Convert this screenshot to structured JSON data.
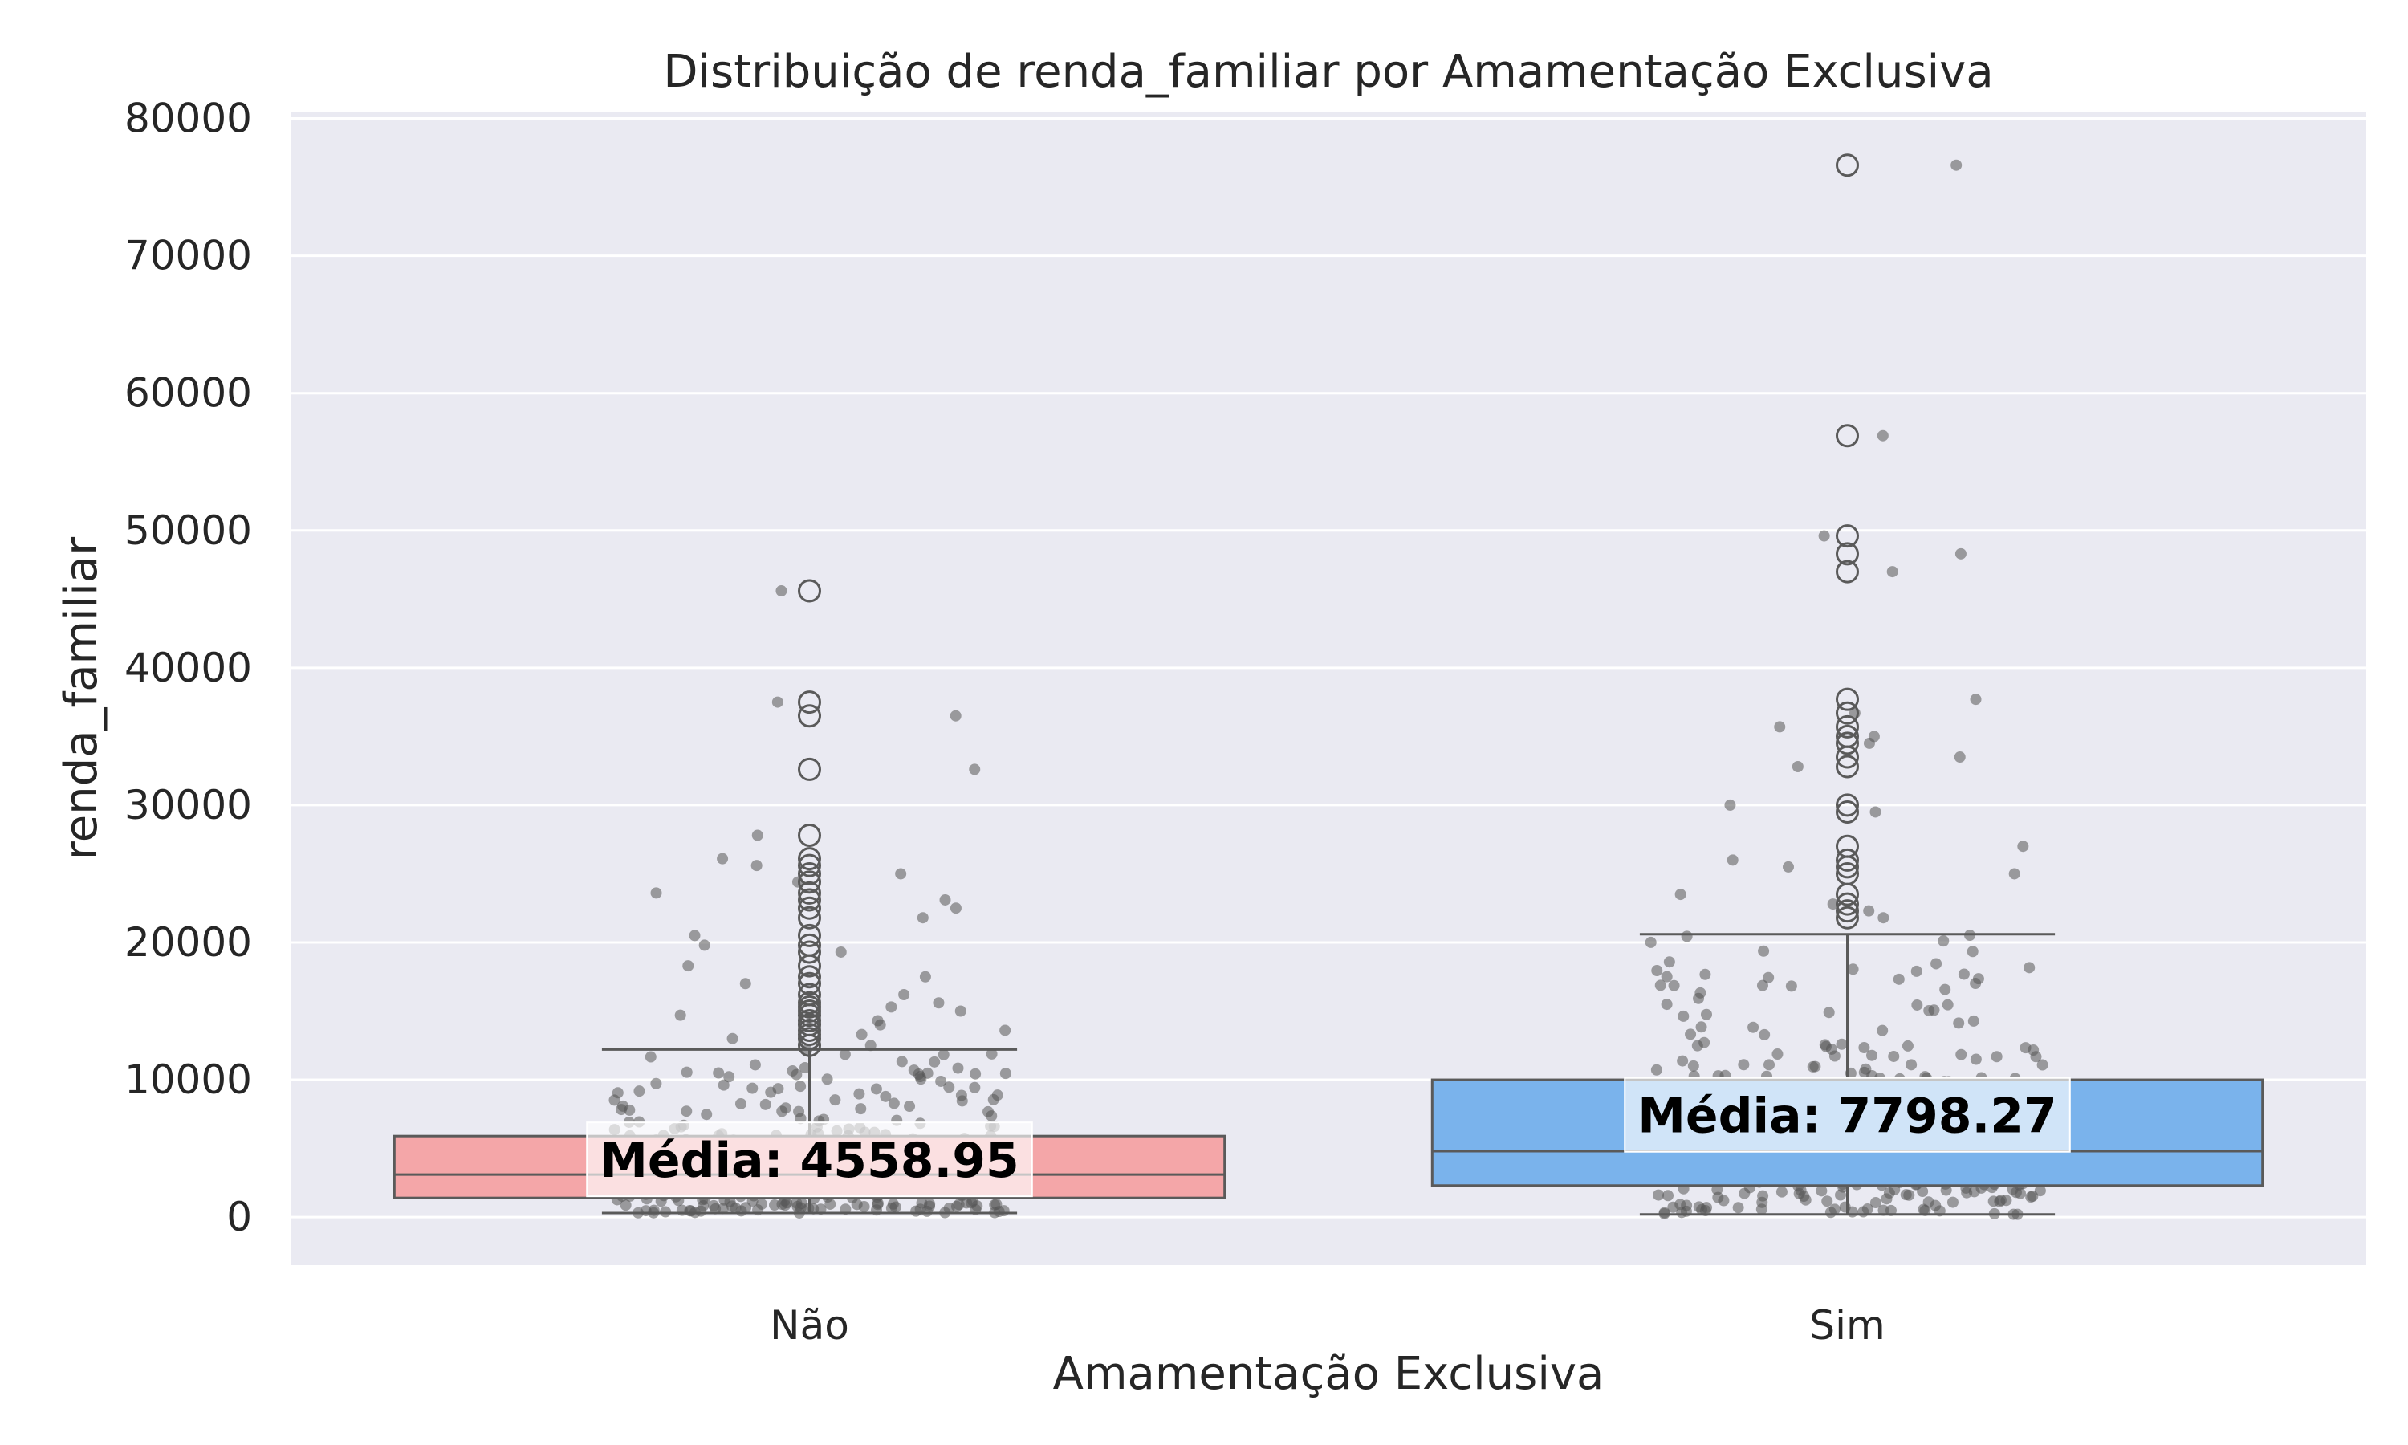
{
  "chart_data": {
    "type": "box",
    "title": "Distribuição de renda_familiar por Amamentação Exclusiva",
    "xlabel": "Amamentação Exclusiva",
    "ylabel": "renda_familiar",
    "ylim": [
      -3500,
      80500
    ],
    "yticks": [
      0,
      10000,
      20000,
      30000,
      40000,
      50000,
      60000,
      70000,
      80000
    ],
    "grid": true,
    "categories": [
      "Não",
      "Sim"
    ],
    "boxes": [
      {
        "category": "Não",
        "color": "#f4a6a8",
        "whisker_low": 300,
        "q1": 1400,
        "median": 3100,
        "q3": 5900,
        "whisker_high": 12200,
        "mean": 4558.95,
        "mean_label": "Média: 4558.95",
        "outliers": [
          12500,
          13000,
          13300,
          13600,
          14000,
          14300,
          14700,
          15000,
          15300,
          15600,
          16200,
          17000,
          17500,
          18300,
          19300,
          19800,
          20500,
          21800,
          22500,
          23100,
          23600,
          24400,
          25000,
          25600,
          26100,
          27800,
          32600,
          36500,
          37500,
          45600
        ]
      },
      {
        "category": "Sim",
        "color": "#7ab3ec",
        "whisker_low": 200,
        "q1": 2300,
        "median": 4800,
        "q3": 10000,
        "whisker_high": 20600,
        "mean": 7798.27,
        "mean_label": "Média: 7798.27",
        "outliers": [
          21800,
          22300,
          22800,
          23500,
          25000,
          25500,
          26000,
          27000,
          29500,
          30000,
          32800,
          33500,
          34500,
          35000,
          35700,
          36700,
          37700,
          47000,
          48300,
          49600,
          56900,
          76600
        ]
      }
    ],
    "strip_color": "#555555"
  },
  "colors": {
    "plot_background": "#eaeaf2",
    "grid": "#ffffff",
    "box_edge": "#5a5a5a",
    "text": "#262626"
  }
}
